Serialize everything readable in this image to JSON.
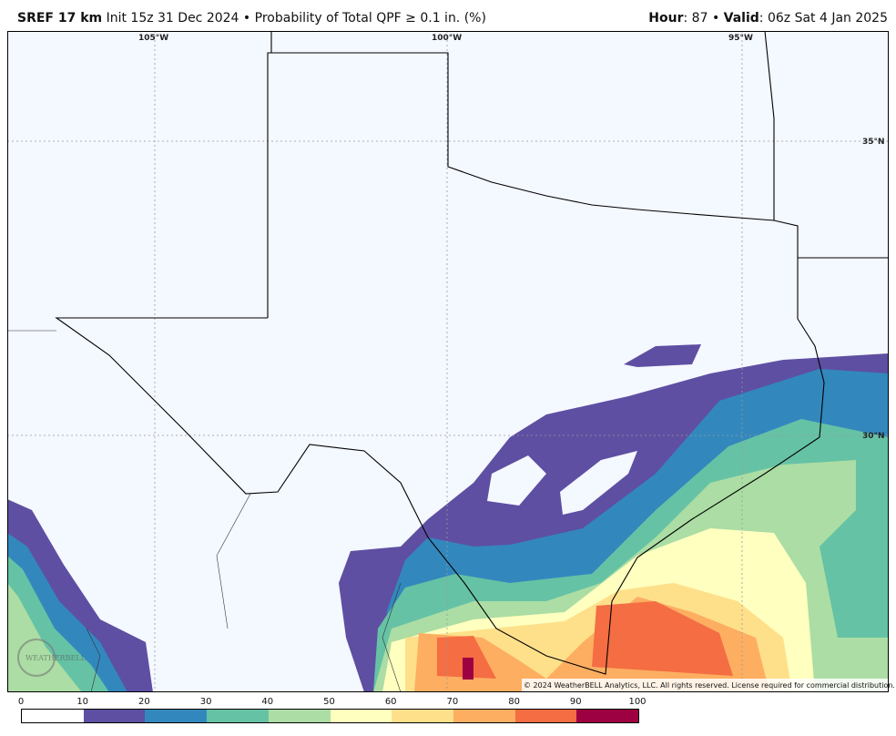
{
  "header": {
    "model": "SREF 17 km",
    "init": "Init 15z 31 Dec 2024",
    "sep": "•",
    "product": "Probability of Total QPF ≥ 0.1 in. (%)",
    "hour_label": "Hour",
    "hour": ": 87",
    "valid_label": "Valid",
    "valid": ": 06z Sat 4 Jan 2025"
  },
  "map": {
    "lon_labels": [
      "105°W",
      "100°W",
      "95°W"
    ],
    "lat_labels": [
      "35°N",
      "30°N"
    ],
    "copyright": "© 2024 WeatherBELL Analytics, LLC. All rights reserved. License required for commercial distribution.",
    "logo_text": "WEATHERBELL",
    "background": "#f4f8ff"
  },
  "colorbar": {
    "ticks": [
      "0",
      "10",
      "20",
      "30",
      "40",
      "50",
      "60",
      "70",
      "80",
      "90",
      "100"
    ],
    "colors": [
      "#ffffff",
      "#5e4fa2",
      "#3288bd",
      "#66c2a5",
      "#abdda4",
      "#ffffbf",
      "#fee08b",
      "#fdae61",
      "#f46d43",
      "#9e0142"
    ]
  }
}
